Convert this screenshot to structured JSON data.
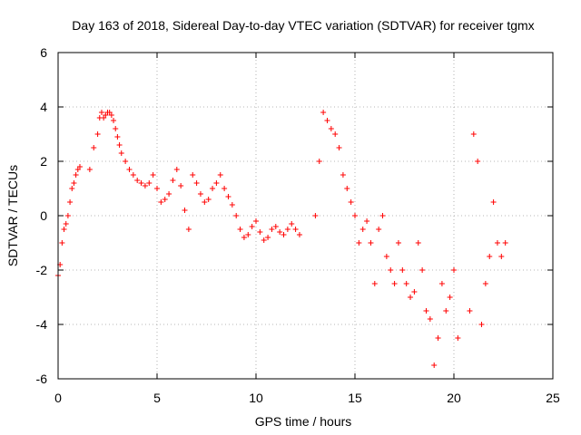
{
  "chart_data": {
    "type": "scatter",
    "title": "Day 163 of 2018, Sidereal Day-to-day VTEC variation (SDTVAR) for receiver tgmx",
    "xlabel": "GPS time / hours",
    "ylabel": "SDTVAR / TECUs",
    "xlim": [
      0,
      25
    ],
    "ylim": [
      -6,
      6
    ],
    "xticks": [
      0,
      5,
      10,
      15,
      20,
      25
    ],
    "yticks": [
      -6,
      -4,
      -2,
      0,
      2,
      4,
      6
    ],
    "grid": true,
    "marker": "plus",
    "color": "#ff0000",
    "series": [
      {
        "name": "tgmx",
        "x": [
          0.0,
          0.1,
          0.2,
          0.3,
          0.4,
          0.5,
          0.6,
          0.7,
          0.8,
          0.9,
          1.0,
          1.1,
          1.6,
          1.8,
          2.0,
          2.1,
          2.2,
          2.3,
          2.4,
          2.5,
          2.6,
          2.7,
          2.8,
          2.9,
          3.0,
          3.1,
          3.2,
          3.4,
          3.6,
          3.8,
          4.0,
          4.2,
          4.4,
          4.6,
          4.8,
          5.0,
          5.2,
          5.4,
          5.6,
          5.8,
          6.0,
          6.2,
          6.4,
          6.6,
          6.8,
          7.0,
          7.2,
          7.4,
          7.6,
          7.8,
          8.0,
          8.2,
          8.4,
          8.6,
          8.8,
          9.0,
          9.2,
          9.4,
          9.6,
          9.8,
          10.0,
          10.2,
          10.4,
          10.6,
          10.8,
          11.0,
          11.2,
          11.4,
          11.6,
          11.8,
          12.0,
          12.2,
          13.0,
          13.2,
          13.4,
          13.6,
          13.8,
          14.0,
          14.2,
          14.4,
          14.6,
          14.8,
          15.0,
          15.2,
          15.4,
          15.6,
          15.8,
          16.0,
          16.2,
          16.4,
          16.6,
          16.8,
          17.0,
          17.2,
          17.4,
          17.6,
          17.8,
          18.0,
          18.2,
          18.4,
          18.6,
          18.8,
          19.0,
          19.2,
          19.4,
          19.6,
          19.8,
          20.0,
          20.2,
          20.8,
          21.0,
          21.2,
          21.4,
          21.6,
          21.8,
          22.0,
          22.2,
          22.4,
          22.6
        ],
        "y": [
          -2.2,
          -1.8,
          -1.0,
          -0.5,
          -0.3,
          0.0,
          0.5,
          1.0,
          1.2,
          1.5,
          1.7,
          1.8,
          1.7,
          2.5,
          3.0,
          3.6,
          3.8,
          3.6,
          3.7,
          3.8,
          3.8,
          3.7,
          3.5,
          3.2,
          2.9,
          2.6,
          2.3,
          2.0,
          1.7,
          1.5,
          1.3,
          1.2,
          1.1,
          1.2,
          1.5,
          1.0,
          0.5,
          0.6,
          0.8,
          1.3,
          1.7,
          1.1,
          0.2,
          -0.5,
          1.5,
          1.2,
          0.8,
          0.5,
          0.6,
          1.0,
          1.2,
          1.5,
          1.0,
          0.7,
          0.4,
          0.0,
          -0.5,
          -0.8,
          -0.7,
          -0.4,
          -0.2,
          -0.6,
          -0.9,
          -0.8,
          -0.5,
          -0.4,
          -0.6,
          -0.7,
          -0.5,
          -0.3,
          -0.5,
          -0.7,
          0.0,
          2.0,
          3.8,
          3.5,
          3.2,
          3.0,
          2.5,
          1.5,
          1.0,
          0.5,
          0.0,
          -1.0,
          -0.5,
          -0.2,
          -1.0,
          -2.5,
          -0.5,
          0.0,
          -1.5,
          -2.0,
          -2.5,
          -1.0,
          -2.0,
          -2.5,
          -3.0,
          -2.8,
          -1.0,
          -2.0,
          -3.5,
          -3.8,
          -5.5,
          -4.5,
          -2.5,
          -3.5,
          -3.0,
          -2.0,
          -4.5,
          -3.5,
          3.0,
          2.0,
          -4.0,
          -2.5,
          -1.5,
          0.5,
          -1.0,
          -1.5,
          -1.0
        ]
      }
    ]
  }
}
